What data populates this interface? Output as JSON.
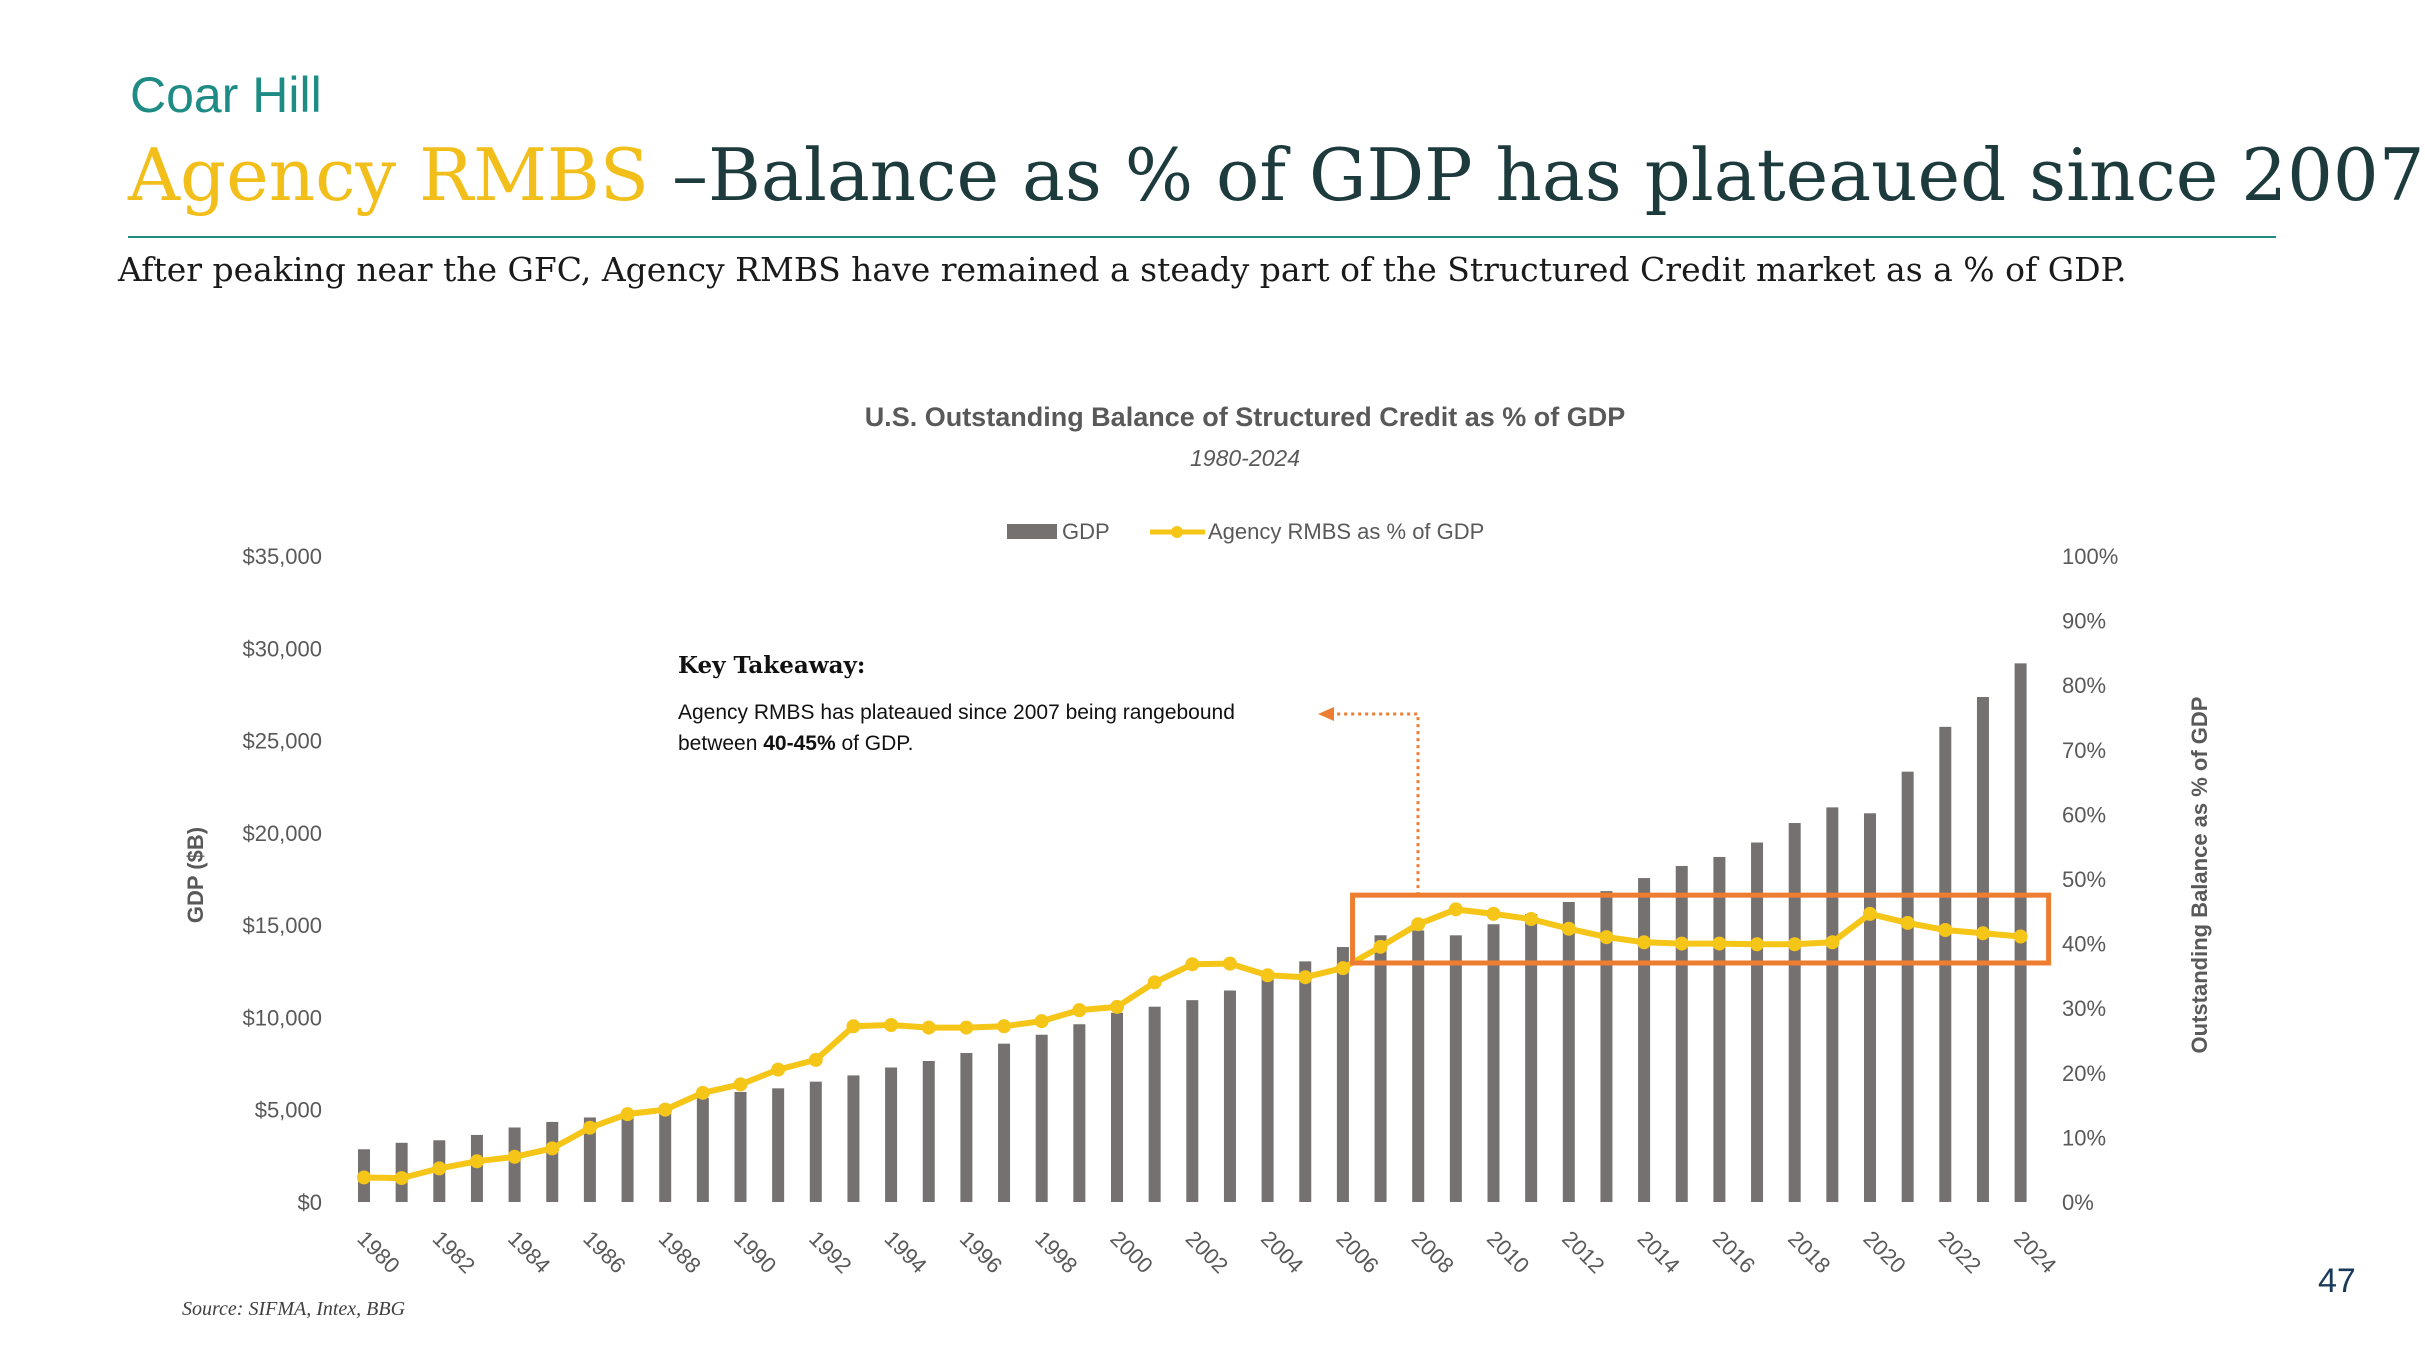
{
  "brand": "Coar Hill",
  "title": {
    "accent": "Agency RMBS",
    "rest": " –Balance as % of GDP has plateaued since 2007"
  },
  "subtitle": "After peaking near the GFC, Agency RMBS have remained a steady part of the Structured Credit market as a % of GDP.",
  "takeaway": {
    "title": "Key Takeaway:",
    "body_pre": "Agency RMBS has plateaued since 2007 being rangebound between ",
    "body_bold": "40-45%",
    "body_post": " of GDP."
  },
  "source": "Source: SIFMA, Intex, BBG",
  "page_number": "47",
  "colors": {
    "bar": "#767171",
    "line": "#f5c518",
    "highlight_box": "#ed7d31",
    "accent_title": "#f2be1a",
    "brand": "#1e8c84",
    "title": "#1d3a3d"
  },
  "chart_data": {
    "type": "bar+line",
    "title": "U.S. Outstanding Balance of Structured Credit as % of GDP",
    "subtitle": "1980-2024",
    "ylabel_left": "GDP ($B)",
    "ylabel_right": "Outstanding Balance as % of GDP",
    "ylim_left": [
      0,
      35000
    ],
    "ylim_right": [
      0,
      100
    ],
    "left_ticks": [
      "$0",
      "$5,000",
      "$10,000",
      "$15,000",
      "$20,000",
      "$25,000",
      "$30,000",
      "$35,000"
    ],
    "right_ticks": [
      "0%",
      "10%",
      "20%",
      "30%",
      "40%",
      "50%",
      "60%",
      "70%",
      "80%",
      "90%",
      "100%"
    ],
    "legend_position": "top-center",
    "x": [
      1980,
      1981,
      1982,
      1983,
      1984,
      1985,
      1986,
      1987,
      1988,
      1989,
      1990,
      1991,
      1992,
      1993,
      1994,
      1995,
      1996,
      1997,
      1998,
      1999,
      2000,
      2001,
      2002,
      2003,
      2004,
      2005,
      2006,
      2007,
      2008,
      2009,
      2010,
      2011,
      2012,
      2013,
      2014,
      2015,
      2016,
      2017,
      2018,
      2019,
      2020,
      2021,
      2022,
      2023,
      2024
    ],
    "x_tick_labels": [
      "1980",
      "1982",
      "1984",
      "1986",
      "1988",
      "1990",
      "1992",
      "1994",
      "1996",
      "1998",
      "2000",
      "2002",
      "2004",
      "2006",
      "2008",
      "2010",
      "2012",
      "2014",
      "2016",
      "2018",
      "2020",
      "2022",
      "2024"
    ],
    "series": [
      {
        "name": "GDP",
        "kind": "bar",
        "axis": "left",
        "values": [
          2857,
          3207,
          3344,
          3634,
          4037,
          4339,
          4580,
          4855,
          5236,
          5642,
          5963,
          6158,
          6520,
          6859,
          7287,
          7640,
          8073,
          8578,
          9063,
          9631,
          10251,
          10582,
          10936,
          11458,
          12214,
          13037,
          13815,
          14452,
          14713,
          14449,
          15049,
          15600,
          16254,
          16843,
          17551,
          18206,
          18695,
          19477,
          20533,
          21381,
          21060,
          23315,
          25744,
          27360,
          29184
        ]
      },
      {
        "name": "Agency RMBS as % of GDP",
        "kind": "line",
        "axis": "right",
        "values": [
          3.8,
          3.7,
          5.2,
          6.3,
          7.0,
          8.3,
          11.5,
          13.6,
          14.3,
          16.9,
          18.2,
          20.5,
          22.0,
          27.2,
          27.4,
          27.0,
          27.0,
          27.2,
          28.0,
          29.7,
          30.2,
          34.0,
          36.8,
          36.9,
          35.1,
          34.8,
          36.2,
          39.5,
          43.0,
          45.3,
          44.6,
          43.8,
          42.3,
          41.0,
          40.2,
          40.0,
          40.0,
          39.9,
          39.9,
          40.2,
          44.6,
          43.2,
          42.1,
          41.6,
          41.1
        ]
      }
    ],
    "highlight": {
      "x_from": 2007,
      "x_to": 2024,
      "y_from_pct": 37,
      "y_to_pct": 47.5
    }
  }
}
